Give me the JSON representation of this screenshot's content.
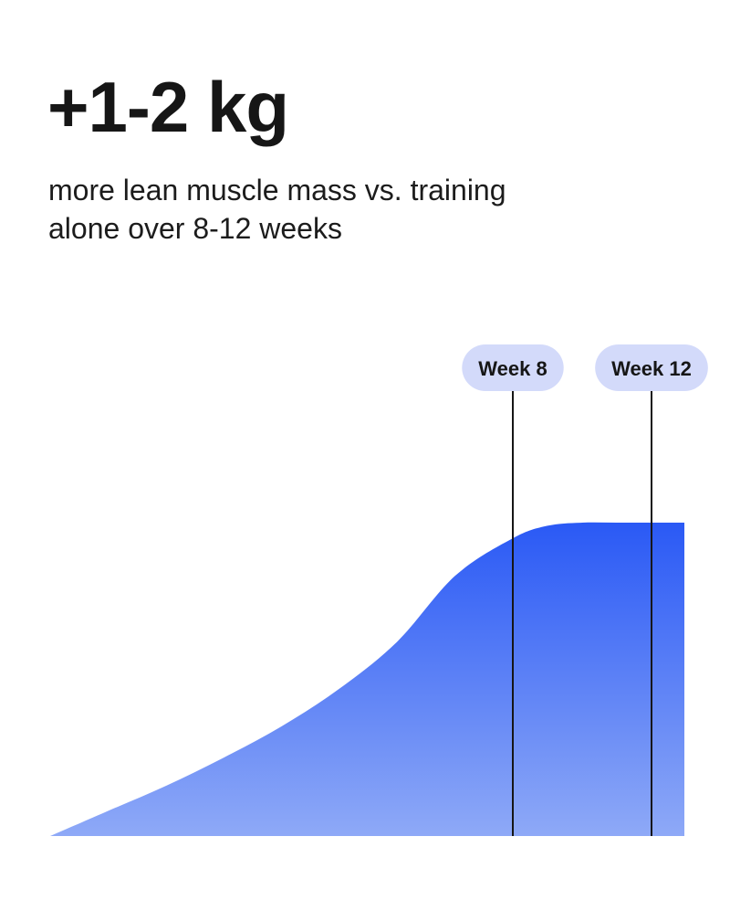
{
  "headline": "+1-2 kg",
  "subhead": {
    "line1": "more lean muscle mass vs. training",
    "line2": "alone over 8-12 weeks"
  },
  "colors": {
    "area_top": "#2a59f5",
    "area_bottom": "#8ea9f7",
    "marker_pill": "#d3dafa",
    "marker_line": "#161616",
    "text": "#161616"
  },
  "chart_data": {
    "type": "area",
    "title": "",
    "xlabel": "",
    "ylabel": "",
    "grid": false,
    "xlim": [
      0,
      12
    ],
    "ylim": [
      0,
      1
    ],
    "series": [
      {
        "x": [
          0,
          1,
          2,
          3,
          4,
          5,
          6,
          7,
          8,
          9,
          10,
          11,
          12
        ],
        "values": [
          0,
          0.08,
          0.16,
          0.25,
          0.35,
          0.47,
          0.62,
          0.83,
          0.95,
          0.99,
          1,
          1,
          1
        ]
      }
    ],
    "markers": [
      {
        "label": "Week 8",
        "x": 8
      },
      {
        "label": "Week 12",
        "x": 12
      }
    ]
  }
}
